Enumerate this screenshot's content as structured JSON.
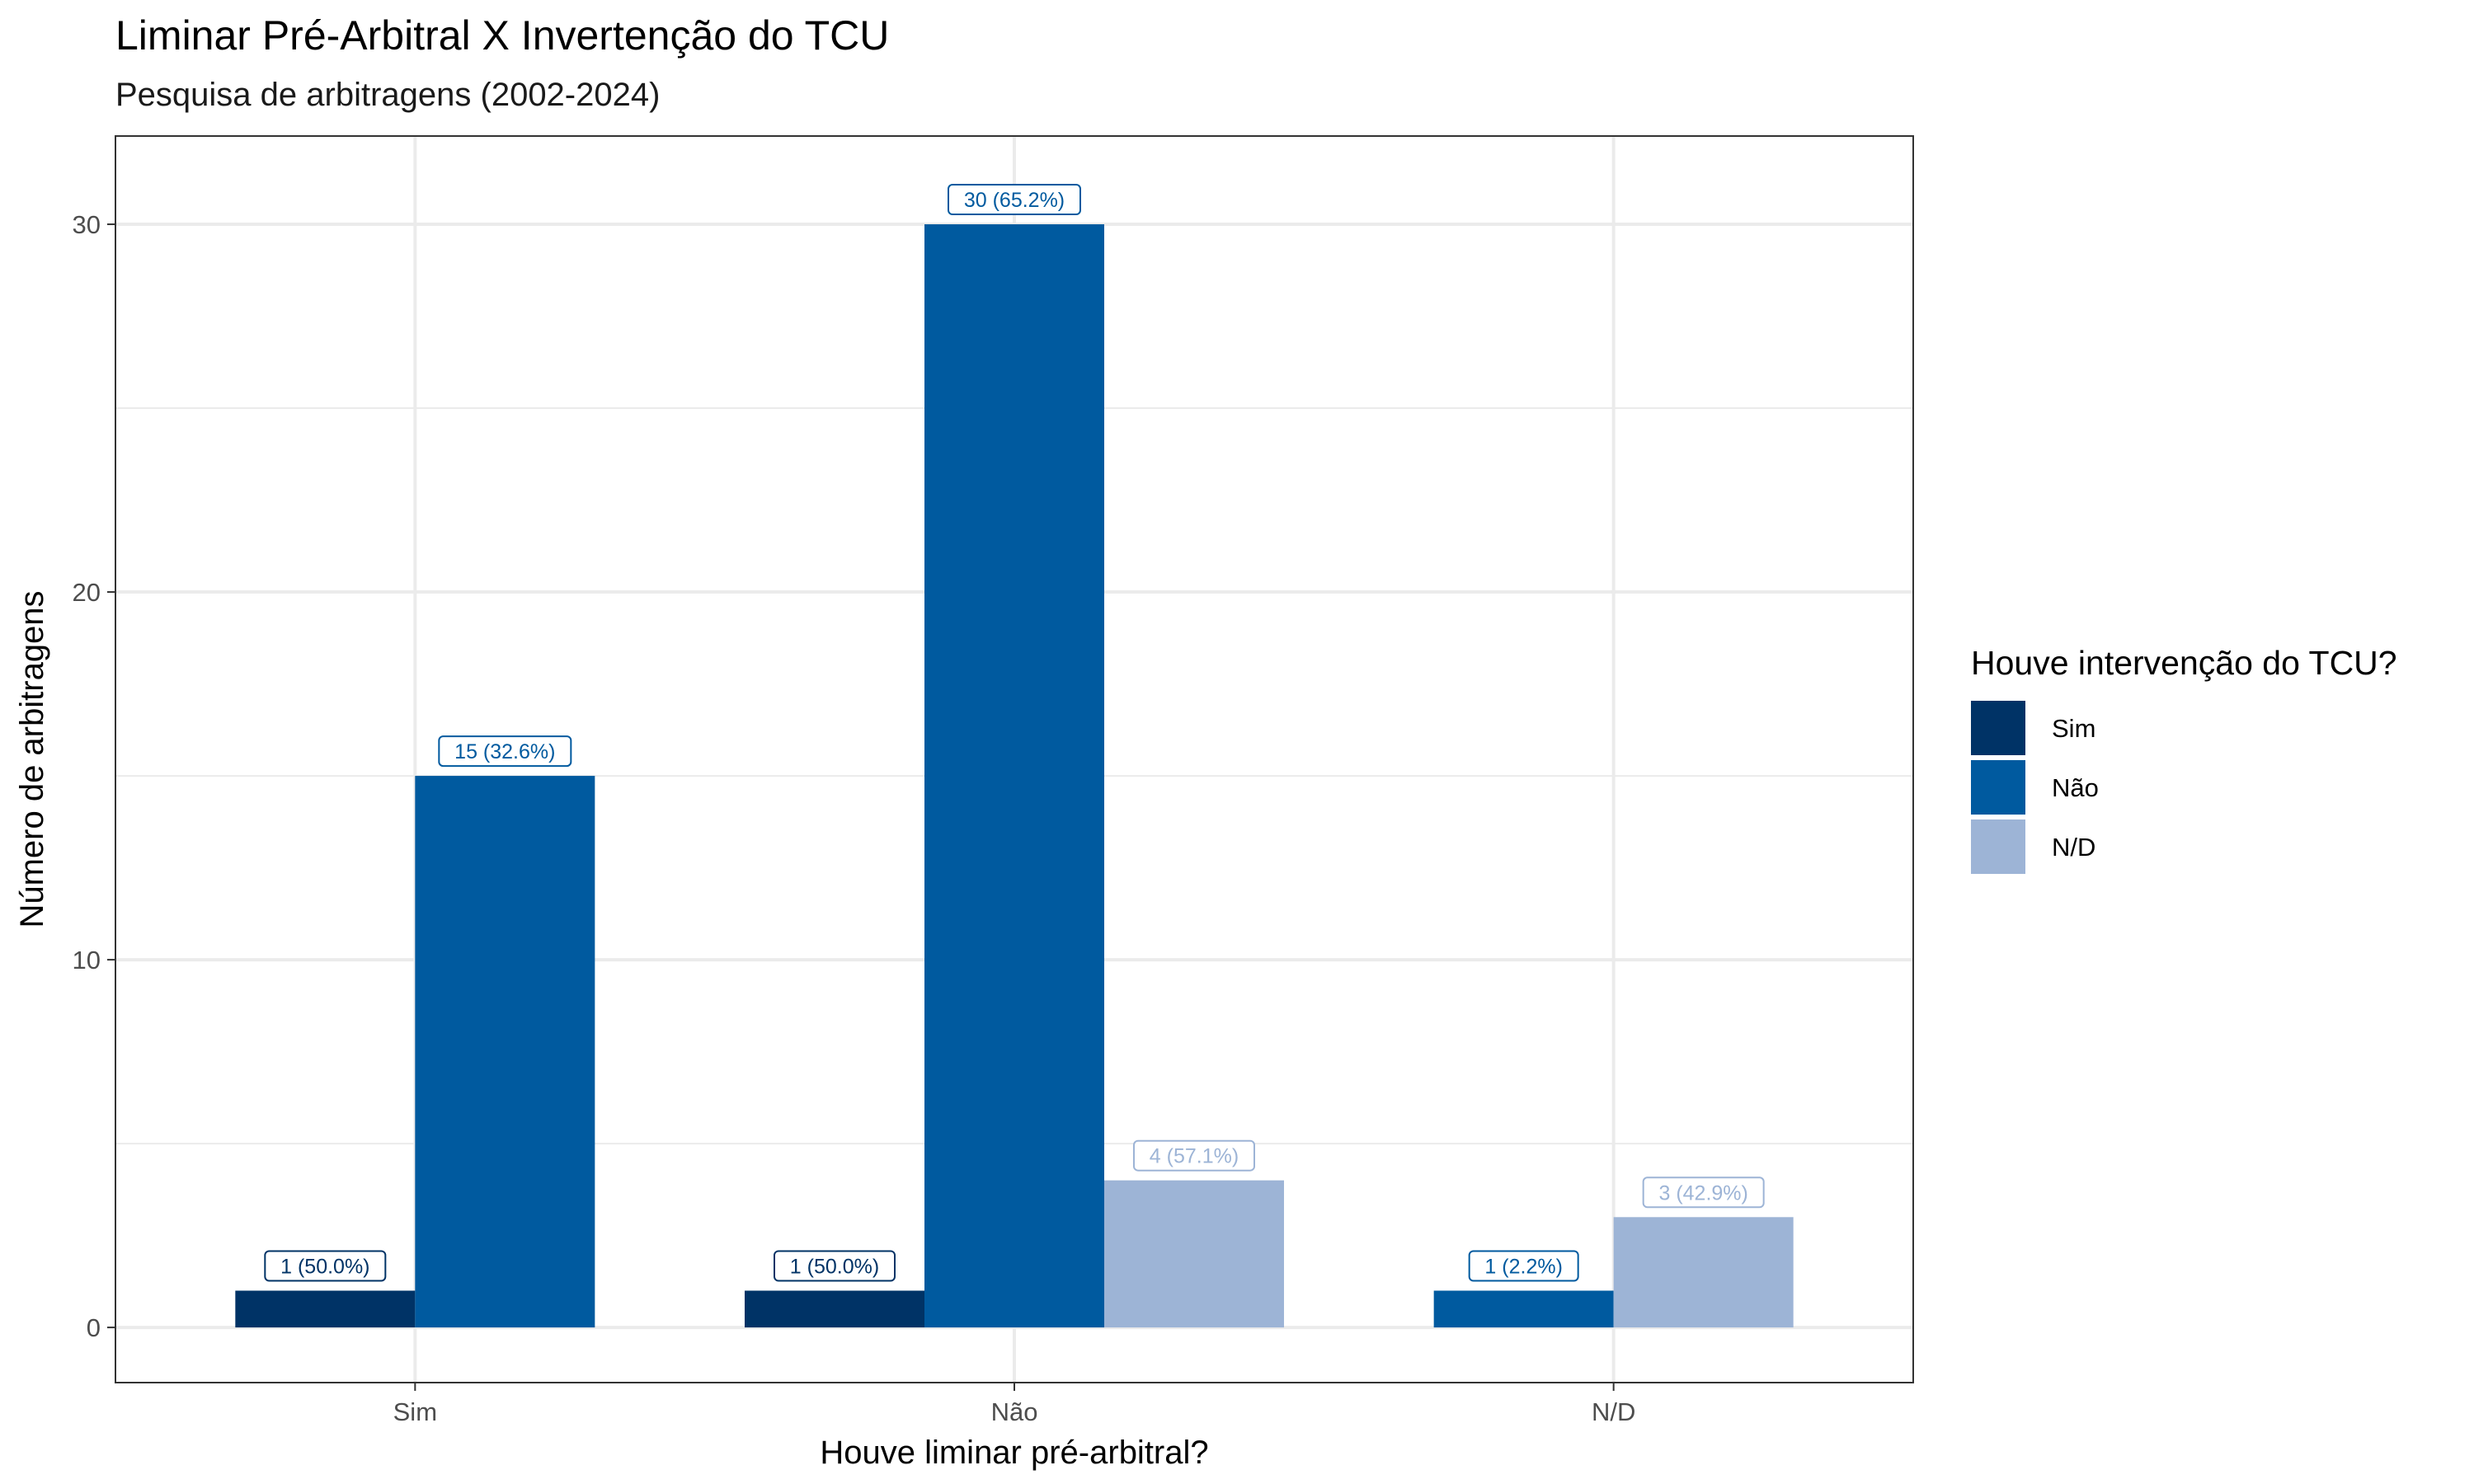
{
  "chart_data": {
    "type": "bar",
    "title": "Liminar Pré-Arbitral X Invertenção do TCU",
    "subtitle": "Pesquisa de arbitragens (2002-2024)",
    "xlabel": "Houve liminar pré-arbitral?",
    "ylabel": "Número de arbitragens",
    "categories": [
      "Sim",
      "Não",
      "N/D"
    ],
    "ylim": [
      -1.5,
      32.4
    ],
    "yticks": [
      0,
      10,
      20,
      30
    ],
    "grid": true,
    "legend": {
      "title": "Houve intervenção do TCU?",
      "position": "right"
    },
    "series": [
      {
        "name": "Sim",
        "color": "#003366",
        "values": [
          1,
          1,
          null
        ],
        "labels": [
          "1 (50.0%)",
          "1 (50.0%)",
          null
        ]
      },
      {
        "name": "Não",
        "color": "#005a9f",
        "values": [
          15,
          30,
          1
        ],
        "labels": [
          "15 (32.6%)",
          "30 (65.2%)",
          "1 (2.2%)"
        ]
      },
      {
        "name": "N/D",
        "color": "#9db4d6",
        "values": [
          null,
          4,
          3
        ],
        "labels": [
          null,
          "4 (57.1%)",
          "3 (42.9%)"
        ]
      }
    ]
  }
}
